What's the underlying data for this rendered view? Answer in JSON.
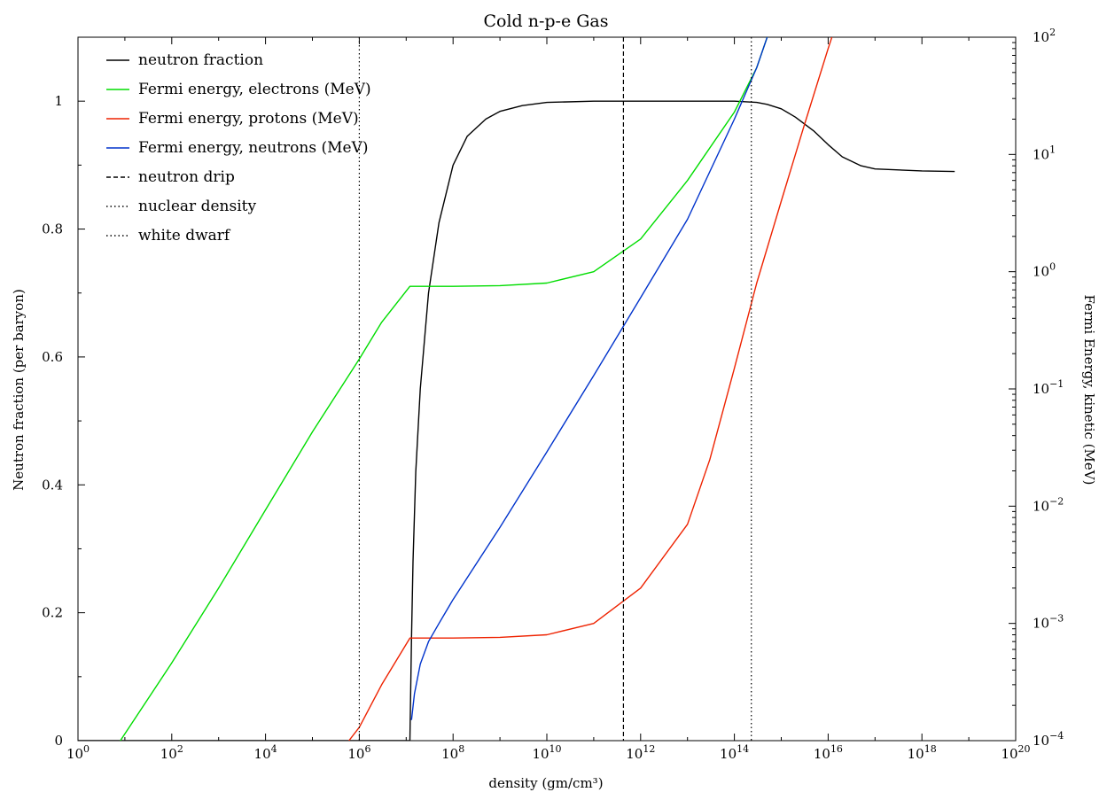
{
  "chart_data": {
    "type": "line",
    "title": "Cold n-p-e Gas",
    "xlabel": "density (gm/cm³)",
    "ylabel": "Neutron fraction (per baryon)",
    "y2label": "Fermi Energy, kinetic (MeV)",
    "x_scale": "log",
    "xlim": [
      1,
      1e+20
    ],
    "ylim": [
      0,
      1.1
    ],
    "y2_scale": "log",
    "y2lim": [
      0.0001,
      100
    ],
    "grid": false,
    "legend_position": "top-left",
    "x_ticks": [
      {
        "base": "10",
        "exp": "0",
        "value": 1
      },
      {
        "base": "10",
        "exp": "2",
        "value": 100
      },
      {
        "base": "10",
        "exp": "4",
        "value": 10000
      },
      {
        "base": "10",
        "exp": "6",
        "value": 1000000.0
      },
      {
        "base": "10",
        "exp": "8",
        "value": 100000000.0
      },
      {
        "base": "10",
        "exp": "10",
        "value": 10000000000.0
      },
      {
        "base": "10",
        "exp": "12",
        "value": 1000000000000.0
      },
      {
        "base": "10",
        "exp": "14",
        "value": 100000000000000.0
      },
      {
        "base": "10",
        "exp": "16",
        "value": 1e+16
      },
      {
        "base": "10",
        "exp": "18",
        "value": 1e+18
      },
      {
        "base": "10",
        "exp": "20",
        "value": 1e+20
      }
    ],
    "y_ticks": [
      "0",
      "0.2",
      "0.4",
      "0.6",
      "0.8",
      "1"
    ],
    "y2_ticks": [
      {
        "base": "10",
        "exp": "−4",
        "value": 0.0001
      },
      {
        "base": "10",
        "exp": "−3",
        "value": 0.001
      },
      {
        "base": "10",
        "exp": "−2",
        "value": 0.01
      },
      {
        "base": "10",
        "exp": "−1",
        "value": 0.1
      },
      {
        "base": "10",
        "exp": "0",
        "value": 1
      },
      {
        "base": "10",
        "exp": "1",
        "value": 10
      },
      {
        "base": "10",
        "exp": "2",
        "value": 100
      }
    ],
    "series": [
      {
        "name": "neutron fraction",
        "color": "#000000",
        "axis": "left",
        "style": "solid",
        "x": [
          1,
          1000000.0,
          12000000.0,
          12500000.0,
          13000000.0,
          14000000.0,
          16000000.0,
          20000000.0,
          30000000.0,
          50000000.0,
          100000000.0,
          200000000.0,
          500000000.0,
          1000000000.0,
          3000000000.0,
          10000000000.0,
          100000000000.0,
          1000000000000.0,
          10000000000000.0,
          100000000000000.0,
          300000000000000.0,
          500000000000000.0,
          1000000000000000.0,
          2000000000000000.0,
          5000000000000000.0,
          1e+16,
          2e+16,
          5e+16,
          1e+17,
          1e+18,
          5e+18
        ],
        "values": [
          0,
          0,
          0,
          0.08,
          0.16,
          0.28,
          0.42,
          0.55,
          0.7,
          0.81,
          0.9,
          0.945,
          0.972,
          0.984,
          0.993,
          0.998,
          1.0,
          1.0,
          1.0,
          1.0,
          0.998,
          0.995,
          0.988,
          0.975,
          0.953,
          0.932,
          0.913,
          0.899,
          0.894,
          0.891,
          0.89
        ]
      },
      {
        "name": "Fermi energy, electrons (MeV)",
        "color": "#00dd00",
        "axis": "right",
        "style": "solid",
        "x": [
          8,
          100,
          1000,
          10000,
          100000.0,
          1000000.0,
          3000000.0,
          12000000.0,
          100000000.0,
          1000000000.0,
          10000000000.0,
          100000000000.0,
          1000000000000.0,
          10000000000000.0,
          100000000000000.0,
          300000000000000.0,
          500000000000000.0
        ],
        "values": [
          0.0001,
          0.00046,
          0.002,
          0.0093,
          0.043,
          0.18,
          0.37,
          0.75,
          0.75,
          0.76,
          0.8,
          1.0,
          1.9,
          6,
          23,
          55,
          100
        ]
      },
      {
        "name": "Fermi energy, protons (MeV)",
        "color": "#ee2200",
        "axis": "right",
        "style": "solid",
        "x": [
          600000.0,
          1000000.0,
          3000000.0,
          12000000.0,
          100000000.0,
          1000000000.0,
          10000000000.0,
          100000000000.0,
          1000000000000.0,
          10000000000000.0,
          30000000000000.0,
          100000000000000.0,
          300000000000000.0,
          1000000000000000.0,
          3000000000000000.0,
          1e+16,
          1.2e+16
        ],
        "values": [
          0.0001,
          0.00013,
          0.0003,
          0.00075,
          0.00075,
          0.00076,
          0.0008,
          0.001,
          0.002,
          0.007,
          0.025,
          0.15,
          0.8,
          4,
          17,
          80,
          100
        ]
      },
      {
        "name": "Fermi energy, neutrons (MeV)",
        "color": "#0033cc",
        "axis": "right",
        "style": "solid",
        "x": [
          13000000.0,
          15000000.0,
          20000000.0,
          30000000.0,
          50000000.0,
          100000000.0,
          1000000000.0,
          10000000000.0,
          100000000000.0,
          1000000000000.0,
          10000000000000.0,
          100000000000000.0,
          300000000000000.0,
          500000000000000.0
        ],
        "values": [
          0.00015,
          0.00025,
          0.00045,
          0.0007,
          0.001,
          0.0016,
          0.0066,
          0.029,
          0.13,
          0.6,
          2.8,
          20,
          55,
          100
        ]
      },
      {
        "name": "neutron drip",
        "color": "#000000",
        "axis": "vline",
        "style": "dashed",
        "x": [
          430000000000.0
        ]
      },
      {
        "name": "nuclear density",
        "color": "#000000",
        "axis": "vline",
        "style": "dotted",
        "x": [
          230000000000000.0
        ]
      },
      {
        "name": "white dwarf",
        "color": "#000000",
        "axis": "vline",
        "style": "dotted",
        "x": [
          1000000.0
        ]
      }
    ]
  }
}
